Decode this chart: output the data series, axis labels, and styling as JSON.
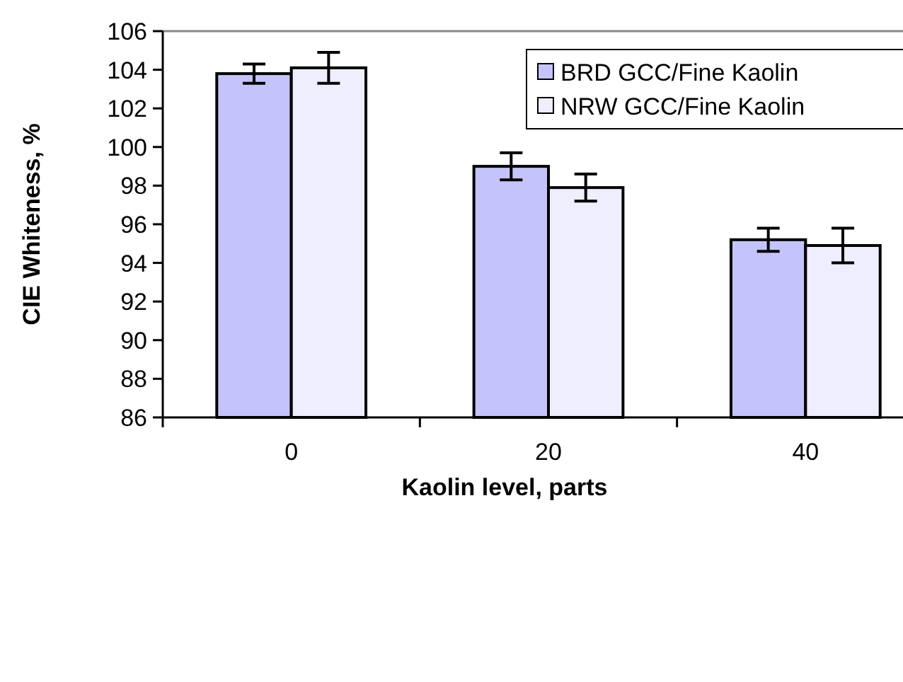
{
  "chart_data": {
    "type": "bar",
    "xlabel": "Kaolin level, parts",
    "ylabel": "CIE Whiteness, %",
    "categories": [
      "0",
      "20",
      "40"
    ],
    "series": [
      {
        "name": "BRD GCC/Fine Kaolin",
        "color": "#c4c4fa",
        "values": [
          103.8,
          99.0,
          95.2
        ],
        "errors": [
          0.5,
          0.7,
          0.6
        ]
      },
      {
        "name": "NRW GCC/Fine Kaolin",
        "color": "#eeeeff",
        "values": [
          104.1,
          97.9,
          94.9
        ],
        "errors": [
          0.8,
          0.7,
          0.9
        ]
      }
    ],
    "ylim": [
      86,
      106
    ],
    "yticks": [
      86,
      88,
      90,
      92,
      94,
      96,
      98,
      100,
      102,
      104,
      106
    ],
    "grid": false,
    "legend": "top right"
  }
}
